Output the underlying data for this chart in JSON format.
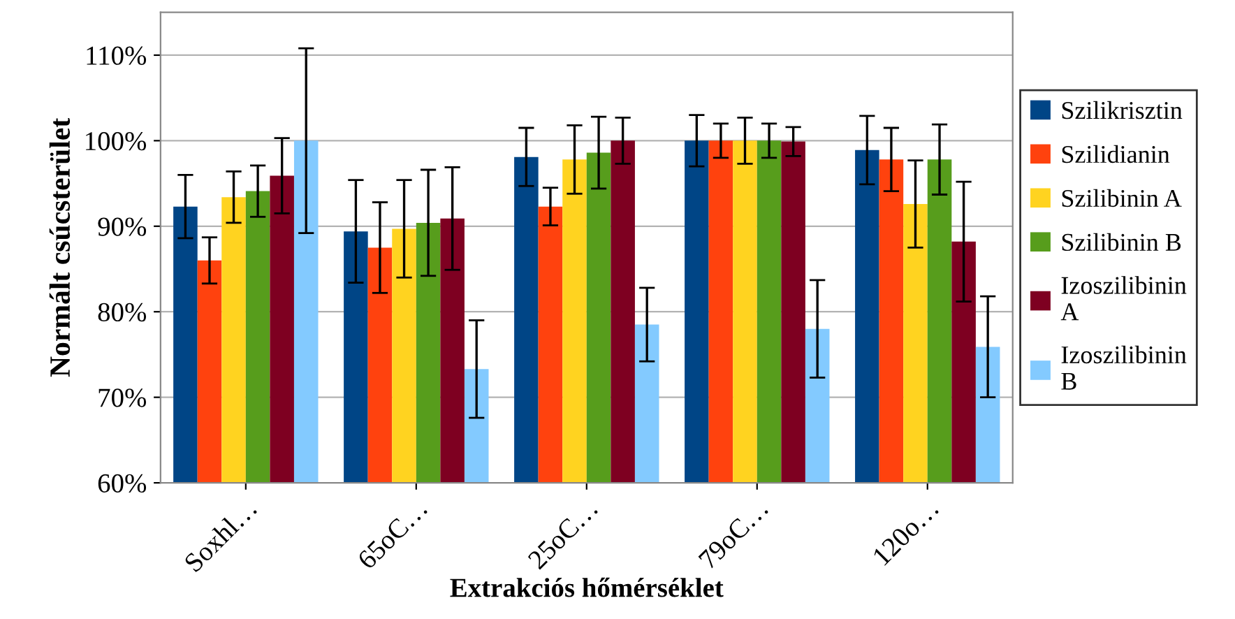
{
  "chart_data": {
    "type": "bar",
    "xlabel": "Extrakciós hőmérséklet",
    "ylabel": "Normált csúcsterület",
    "categories": [
      "Soxhl…",
      "65oC…",
      "25oC…",
      "79oC…",
      "120o…"
    ],
    "series": [
      {
        "name": "Szilikrisztin",
        "color": "#004586",
        "values": [
          92.3,
          89.4,
          98.1,
          100,
          98.9
        ],
        "errors": [
          3.7,
          6,
          3.4,
          3,
          4
        ]
      },
      {
        "name": "Szilidianin",
        "color": "#ff420e",
        "values": [
          86,
          87.5,
          92.3,
          100,
          97.8
        ],
        "errors": [
          2.7,
          5.3,
          2.2,
          2,
          3.7
        ]
      },
      {
        "name": "Szilibinin A",
        "color": "#ffd320",
        "values": [
          93.4,
          89.7,
          97.8,
          100,
          92.6
        ],
        "errors": [
          3,
          5.7,
          4,
          2.7,
          5.1
        ]
      },
      {
        "name": "Szilibinin B",
        "color": "#579d1c",
        "values": [
          94.1,
          90.4,
          98.6,
          100,
          97.8
        ],
        "errors": [
          3,
          6.2,
          4.2,
          2,
          4.1
        ]
      },
      {
        "name": "Izoszilibinin A",
        "color": "#7e0021",
        "values": [
          95.9,
          90.9,
          100,
          99.9,
          88.2
        ],
        "errors": [
          4.4,
          6,
          2.7,
          1.7,
          7
        ]
      },
      {
        "name": "Izoszilibinin B",
        "color": "#83caff",
        "values": [
          100,
          73.3,
          78.5,
          78,
          75.9
        ],
        "errors": [
          10.8,
          5.7,
          4.3,
          5.7,
          5.9
        ]
      }
    ],
    "ylim": [
      60,
      115
    ],
    "yticks": [
      {
        "value": 60,
        "label": "60%"
      },
      {
        "value": 70,
        "label": "70%"
      },
      {
        "value": 80,
        "label": "80%"
      },
      {
        "value": 90,
        "label": "90%"
      },
      {
        "value": 100,
        "label": "100%"
      },
      {
        "value": 110,
        "label": "110%"
      }
    ],
    "grid": "y",
    "legend": "right"
  }
}
